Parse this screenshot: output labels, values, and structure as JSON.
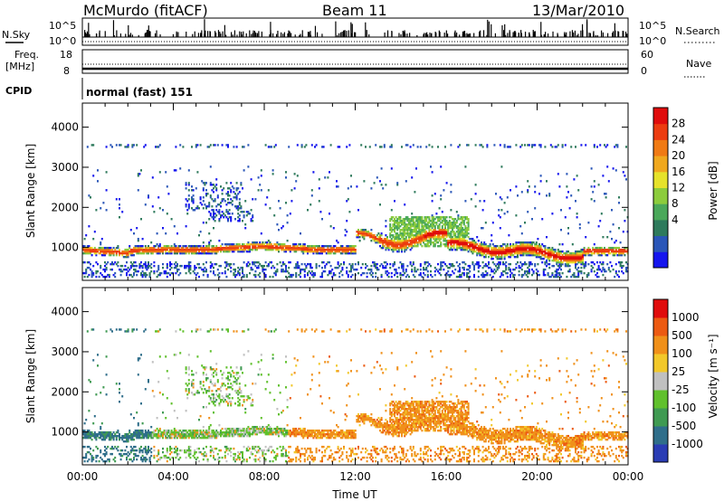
{
  "header": {
    "title": "McMurdo (fitACF)",
    "beam": "Beam 11",
    "date": "13/Mar/2010"
  },
  "strip": {
    "nsky_label": "N.Sky",
    "nsearch_label": "N.Search",
    "nsky_ticks": [
      "10^5",
      "10^0"
    ],
    "nsearch_ticks": [
      "10^5",
      "10^0"
    ],
    "freq_label": [
      "Freq.",
      "[MHz]"
    ],
    "freq_ticks": [
      "18",
      "8"
    ],
    "nave_label": "Nave",
    "nave_ticks": [
      "60",
      "0"
    ],
    "cpid_label": "CPID",
    "cpid_value": "normal (fast) 151"
  },
  "chart_data": [
    {
      "type": "heatmap",
      "name": "power",
      "ylabel": "Slant Range [km]",
      "xlabel": "",
      "yticks": [
        "4000",
        "3000",
        "2000",
        "1000"
      ],
      "ylim": [
        180,
        4600
      ],
      "xlim": [
        0,
        24
      ],
      "colorbar": {
        "label": "Power [dB]",
        "ticks": [
          "28",
          "24",
          "20",
          "16",
          "12",
          "8",
          "4"
        ],
        "colors": [
          "#1515ee",
          "#2a56b8",
          "#2e7a5c",
          "#4aa85a",
          "#8ccc3c",
          "#e6e22a",
          "#f0a81e",
          "#f07a14",
          "#ec3c10",
          "#e00c0c"
        ]
      }
    },
    {
      "type": "heatmap",
      "name": "velocity",
      "ylabel": "Slant Range [km]",
      "xlabel": "Time UT",
      "yticks": [
        "4000",
        "3000",
        "2000",
        "1000"
      ],
      "xticks": [
        "00:00",
        "04:00",
        "08:00",
        "12:00",
        "16:00",
        "20:00",
        "00:00"
      ],
      "ylim": [
        180,
        4600
      ],
      "xlim": [
        0,
        24
      ],
      "colorbar": {
        "label": "Velocity [m s⁻¹]",
        "ticks": [
          "1000",
          "500",
          "100",
          "25",
          "-25",
          "-100",
          "-500",
          "-1000"
        ],
        "colors": [
          "#2a3cb4",
          "#2f6e8a",
          "#3f9a52",
          "#60c02c",
          "#c0c0c0",
          "#f2c82a",
          "#f0901a",
          "#ec5a12",
          "#e00c0c"
        ]
      }
    }
  ]
}
